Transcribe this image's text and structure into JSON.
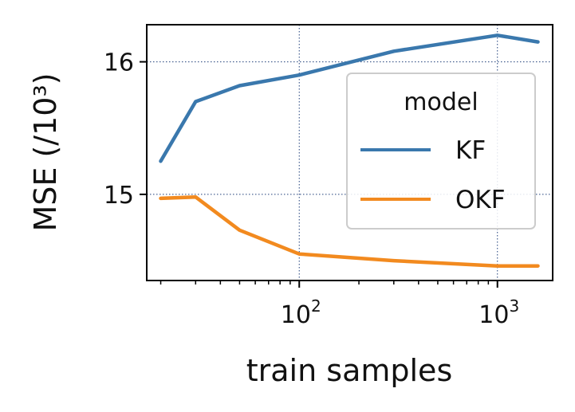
{
  "chart_data": {
    "type": "line",
    "xlabel": "train samples",
    "ylabel": "MSE (/10³)",
    "x_scale": "log",
    "xlim": [
      17,
      1900
    ],
    "ylim": [
      14.35,
      16.28
    ],
    "x_ticks": [
      {
        "value": 100,
        "base": "10",
        "exp": "2"
      },
      {
        "value": 1000,
        "base": "10",
        "exp": "3"
      }
    ],
    "y_ticks": [
      {
        "value": 15,
        "label": "15"
      },
      {
        "value": 16,
        "label": "16"
      }
    ],
    "grid": true,
    "legend": {
      "title": "model",
      "placement": "center-right"
    },
    "series": [
      {
        "name": "KF",
        "color": "#3a78ad",
        "points": [
          {
            "x": 20,
            "y": 15.25
          },
          {
            "x": 30,
            "y": 15.7
          },
          {
            "x": 50,
            "y": 15.82
          },
          {
            "x": 100,
            "y": 15.9
          },
          {
            "x": 300,
            "y": 16.08
          },
          {
            "x": 1000,
            "y": 16.2
          },
          {
            "x": 1600,
            "y": 16.15
          }
        ]
      },
      {
        "name": "OKF",
        "color": "#f28a1f",
        "points": [
          {
            "x": 20,
            "y": 14.97
          },
          {
            "x": 30,
            "y": 14.98
          },
          {
            "x": 50,
            "y": 14.73
          },
          {
            "x": 100,
            "y": 14.55
          },
          {
            "x": 300,
            "y": 14.5
          },
          {
            "x": 1000,
            "y": 14.46
          },
          {
            "x": 1600,
            "y": 14.46
          }
        ]
      }
    ]
  }
}
